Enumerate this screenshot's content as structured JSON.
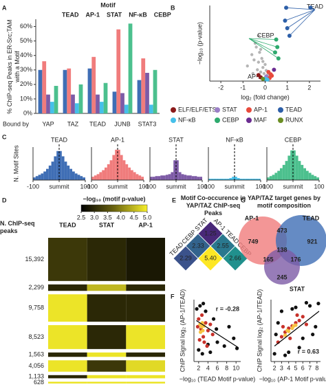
{
  "chart_data": [
    {
      "type": "bar",
      "panel": "A",
      "title": "Motif",
      "ylabel": "% ChIP-seq Peaks in ER-Src;TAM with a Motif",
      "xlabel": "Bound by",
      "categories": [
        "YAP",
        "TAZ",
        "TEAD",
        "JUNB",
        "STAT3"
      ],
      "series": [
        {
          "name": "TEAD",
          "color": "#3f6eb5",
          "values": [
            30,
            30,
            31,
            15,
            23
          ]
        },
        {
          "name": "AP-1",
          "color": "#f07c7c",
          "values": [
            36,
            31,
            39,
            58,
            38
          ]
        },
        {
          "name": "STAT",
          "color": "#7d5ba6",
          "values": [
            13,
            13,
            13,
            14,
            28
          ]
        },
        {
          "name": "NF-κB",
          "color": "#45c0ea",
          "values": [
            8,
            7,
            8,
            6,
            6
          ]
        },
        {
          "name": "CEBP",
          "color": "#4cc08e",
          "values": [
            19,
            20,
            21,
            62,
            30
          ]
        }
      ],
      "ylim": [
        0,
        65
      ],
      "yticks": [
        {
          "value": 0,
          "label": "0%"
        },
        {
          "value": 10,
          "label": "10%"
        },
        {
          "value": 20,
          "label": "20%"
        },
        {
          "value": 30,
          "label": "30%"
        },
        {
          "value": 40,
          "label": "40%"
        },
        {
          "value": 50,
          "label": "50%"
        },
        {
          "value": 60,
          "label": "60%"
        }
      ]
    },
    {
      "type": "scatter",
      "panel": "B",
      "xlabel": "log₂ (fold change)",
      "ylabel": "−log₁₀ (p-value)",
      "xlim": [
        -2.5,
        2.5
      ],
      "xticks": [
        -2,
        -1,
        0,
        1,
        2
      ],
      "ylim": [
        0,
        100
      ],
      "background": {
        "color": "#b5b5b5",
        "x": [
          -0.8,
          -0.6,
          -0.5,
          -0.4,
          -0.35,
          -0.3,
          -0.25,
          -0.2,
          -0.15,
          -0.1,
          -0.05,
          0.0,
          0.05,
          0.1,
          -0.45,
          -0.55,
          -0.3,
          -0.2,
          -0.1,
          0.2
        ],
        "y": [
          20,
          35,
          28,
          45,
          15,
          25,
          38,
          12,
          30,
          18,
          10,
          22,
          14,
          8,
          50,
          10,
          60,
          42,
          26,
          6
        ]
      },
      "series": [
        {
          "name": "ELF/ELF/ETS",
          "color": "#8b1a1a",
          "x": [
            -0.3,
            -0.2
          ],
          "y": [
            8,
            5
          ]
        },
        {
          "name": "STAT",
          "color": "#9b7fc7",
          "x": [
            0.05,
            0.1
          ],
          "y": [
            6,
            4
          ]
        },
        {
          "name": "AP-1",
          "color": "#e84a3c",
          "x": [
            0.15,
            0.25,
            0.3,
            0.2
          ],
          "y": [
            12,
            9,
            7,
            4
          ]
        },
        {
          "name": "TEAD",
          "color": "#2d5fa8",
          "x": [
            0.95,
            2.05,
            0.9,
            1.0,
            1.1
          ],
          "y": [
            97,
            97,
            80,
            70,
            60
          ]
        },
        {
          "name": "NF-κB",
          "color": "#45c0ea",
          "x": [
            0.0,
            0.1
          ],
          "y": [
            3,
            2
          ]
        },
        {
          "name": "CEBP",
          "color": "#2eaa6e",
          "x": [
            0.5,
            0.55,
            0.45,
            0.6
          ],
          "y": [
            55,
            45,
            38,
            30
          ]
        },
        {
          "name": "MAF",
          "color": "#6b2c91",
          "x": [
            0.4
          ],
          "y": [
            15
          ]
        },
        {
          "name": "RUNX",
          "color": "#6b8e23",
          "x": [
            -0.1
          ],
          "y": [
            3
          ]
        }
      ],
      "annotations": [
        {
          "text": "TEAD",
          "color": "#2d5fa8"
        },
        {
          "text": "CEBP",
          "color": "#2eaa6e"
        },
        {
          "text": "AP-1",
          "color": "#e84a3c"
        }
      ]
    },
    {
      "type": "histogram",
      "panel": "C",
      "ylabel": "N. Motif Sites",
      "title": "TEAD",
      "color": "#3f6eb5",
      "bins": [
        -100,
        -90,
        -80,
        -70,
        -60,
        -50,
        -40,
        -30,
        -20,
        -10,
        0,
        10,
        20,
        30,
        40,
        50,
        60,
        70,
        80,
        90,
        100
      ],
      "counts": [
        4,
        6,
        8,
        10,
        13,
        17,
        22,
        28,
        36,
        44,
        44,
        36,
        28,
        22,
        17,
        13,
        10,
        8,
        6,
        4
      ],
      "xlim": [
        -100,
        100
      ],
      "ylim": [
        0,
        50
      ],
      "xticks": [
        -100,
        {
          "value": 0,
          "label": "summit"
        },
        100
      ]
    },
    {
      "type": "histogram",
      "title": "AP-1",
      "color": "#f07c7c",
      "bins": [
        -100,
        -90,
        -80,
        -70,
        -60,
        -50,
        -40,
        -30,
        -20,
        -10,
        0,
        10,
        20,
        30,
        40,
        50,
        60,
        70,
        80,
        90,
        100
      ],
      "counts": [
        5,
        7,
        9,
        12,
        15,
        19,
        24,
        30,
        38,
        46,
        46,
        38,
        30,
        24,
        19,
        15,
        12,
        9,
        7,
        5
      ],
      "xlim": [
        -100,
        100
      ],
      "ylim": [
        0,
        50
      ],
      "xticks": [
        -100,
        {
          "value": 0,
          "label": "summit"
        },
        100
      ]
    },
    {
      "type": "histogram",
      "title": "STAT",
      "color": "#7d5ba6",
      "bins": [
        -100,
        -90,
        -80,
        -70,
        -60,
        -50,
        -40,
        -30,
        -20,
        -10,
        0,
        10,
        20,
        30,
        40,
        50,
        60,
        70,
        80,
        90,
        100
      ],
      "counts": [
        5,
        5,
        6,
        6,
        7,
        7,
        8,
        9,
        12,
        30,
        30,
        12,
        9,
        8,
        7,
        7,
        6,
        6,
        5,
        5
      ],
      "xlim": [
        -100,
        100
      ],
      "ylim": [
        0,
        50
      ],
      "xticks": [
        -100,
        {
          "value": 0,
          "label": "summit"
        },
        100
      ]
    },
    {
      "type": "histogram",
      "title": "NF-κB",
      "color": "#45c0ea",
      "bins": [
        -100,
        -90,
        -80,
        -70,
        -60,
        -50,
        -40,
        -30,
        -20,
        -10,
        0,
        10,
        20,
        30,
        40,
        50,
        60,
        70,
        80,
        90,
        100
      ],
      "counts": [
        2,
        2,
        2,
        2,
        2,
        2,
        2,
        2,
        3,
        5,
        5,
        3,
        2,
        2,
        2,
        2,
        2,
        2,
        2,
        2
      ],
      "xlim": [
        -100,
        100
      ],
      "ylim": [
        0,
        50
      ],
      "xticks": [
        -100,
        {
          "value": 0,
          "label": "summit"
        },
        100
      ]
    },
    {
      "type": "histogram",
      "title": "CEBP",
      "color": "#4cc08e",
      "bins": [
        -100,
        -90,
        -80,
        -70,
        -60,
        -50,
        -40,
        -30,
        -20,
        -10,
        0,
        10,
        20,
        30,
        40,
        50,
        60,
        70,
        80,
        90,
        100
      ],
      "counts": [
        4,
        6,
        8,
        11,
        14,
        18,
        23,
        29,
        37,
        45,
        45,
        37,
        29,
        23,
        18,
        14,
        11,
        8,
        6,
        4
      ],
      "xlim": [
        -100,
        100
      ],
      "ylim": [
        0,
        50
      ],
      "xticks": [
        -100,
        {
          "value": 0,
          "label": "summit"
        },
        100
      ]
    },
    {
      "type": "heatmap",
      "panel": "D",
      "colorbar_label": "−log₁₀ (motif p-value)",
      "clim": [
        2.5,
        5.0
      ],
      "cticks": [
        2.5,
        {
          "value": 3,
          "label": "3.0"
        },
        3.5,
        {
          "value": 4,
          "label": "4.0"
        },
        4.5,
        {
          "value": 5,
          "label": "5.0"
        }
      ],
      "colormap": [
        "#000000",
        "#6b6410",
        "#f7ef2a"
      ],
      "row_header": "N. ChIP-seq peaks",
      "columns": [
        "TEAD",
        "STAT",
        "AP-1"
      ],
      "peaks": [
        {
          "value": 15392,
          "label": "15,392"
        },
        {
          "value": 2299,
          "label": "2,299"
        },
        {
          "value": 9758,
          "label": "9,758"
        },
        {
          "value": 8523,
          "label": "8,523"
        },
        {
          "value": 1563,
          "label": "1,563"
        },
        {
          "value": 4056,
          "label": "4,056"
        },
        {
          "value": 1133,
          "label": "1,133"
        },
        {
          "value": 628,
          "label": "628"
        }
      ],
      "values": [
        [
          3.2,
          3.0,
          2.8
        ],
        [
          3.0,
          4.5,
          3.0
        ],
        [
          4.9,
          3.0,
          3.0
        ],
        [
          4.9,
          3.0,
          4.9
        ],
        [
          3.0,
          4.9,
          3.0
        ],
        [
          4.9,
          3.2,
          4.8
        ],
        [
          3.0,
          4.9,
          4.9
        ],
        [
          4.9,
          4.9,
          4.9
        ]
      ]
    },
    {
      "type": "matrix",
      "panel": "E",
      "title": "Motif Co-occurence in YAP/TAZ ChIP-seq Peaks",
      "left_labels": [
        "STAT",
        "CEBP",
        "TEAD"
      ],
      "right_labels": [
        "AP-1",
        "TEAD",
        "CEBP"
      ],
      "cells": [
        [
          1.25
        ],
        [
          2.33,
          2.55
        ],
        [
          2.29,
          5.4,
          2.66
        ]
      ],
      "value_labels": [
        [
          "1.25"
        ],
        [
          "2.33",
          "2.55"
        ],
        [
          "2.29",
          "5.40",
          "2.66"
        ]
      ],
      "colors": [
        [
          "#482878"
        ],
        [
          "#33638d",
          "#2a788e"
        ],
        [
          "#3b528b",
          "#fde725",
          "#21908d"
        ]
      ]
    },
    {
      "type": "scatter",
      "panel": "F",
      "xlabel": "−log₁₀ (TEAD Motif p-value)",
      "ylabel": "ChIP Signal log₂ (AP-1/TEAD)",
      "xlim": [
        1,
        11
      ],
      "xticks": [
        2,
        4,
        6,
        8,
        10
      ],
      "ylim": [
        -4,
        4
      ],
      "series": [
        {
          "color": "#111111",
          "x": [
            1.6,
            2.0,
            2.3,
            3.5,
            4.5,
            5.2,
            6.0,
            7.5,
            8.5,
            9.5,
            2.8,
            4.0,
            3.0,
            5.8,
            10.2
          ],
          "y": [
            2.8,
            -2.5,
            3.2,
            2.5,
            -2.8,
            1.5,
            -1.5,
            -2.0,
            0.5,
            -1.0,
            -3.0,
            -1.8,
            3.5,
            0.2,
            -2.3
          ]
        },
        {
          "color": "#c8322b",
          "x": [
            2.0,
            2.5,
            3.0,
            3.5,
            2.2,
            4.0,
            2.7,
            3.2,
            4.5,
            1.8,
            5.0,
            3.8
          ],
          "y": [
            1.5,
            0.2,
            -0.8,
            1.0,
            -1.2,
            0.0,
            2.0,
            -1.5,
            0.8,
            0.5,
            -0.5,
            -2.0
          ]
        },
        {
          "color": "#f7c242",
          "x": [
            2.3,
            2.6,
            2.9,
            2.4,
            3.1,
            2.8
          ],
          "y": [
            0.8,
            0.5,
            0.0,
            -0.2,
            0.6,
            1.0
          ]
        }
      ],
      "trend": {
        "x": [
          1.5,
          10.5
        ],
        "y": [
          1.3,
          -2.2
        ]
      },
      "annotation": "r = -0.28"
    },
    {
      "type": "scatter",
      "xlabel": "−log₁₀ (AP-1 Motif p-value)",
      "ylabel": "ChIP Signal log₂ (AP-1/TEAD)",
      "xlim": [
        1.5,
        8.5
      ],
      "xticks": [
        2,
        3,
        4,
        5,
        6,
        7,
        8
      ],
      "ylim": [
        -4,
        4
      ],
      "series": [
        {
          "color": "#111111",
          "x": [
            2.0,
            2.5,
            3.0,
            4.0,
            5.0,
            6.0,
            7.0,
            7.8,
            8.2,
            3.5,
            6.5,
            2.2,
            4.5,
            5.5,
            7.4
          ],
          "y": [
            -3.0,
            1.0,
            2.5,
            -2.8,
            3.0,
            -1.0,
            3.2,
            0.5,
            3.5,
            -3.2,
            3.6,
            -0.5,
            2.8,
            -2.2,
            -0.5
          ]
        },
        {
          "color": "#c8322b",
          "x": [
            2.5,
            3.0,
            3.5,
            4.0,
            4.5,
            5.0,
            5.5,
            6.0,
            3.2,
            4.2,
            5.2,
            6.5
          ],
          "y": [
            -1.5,
            -0.8,
            -0.2,
            0.3,
            0.6,
            1.0,
            1.3,
            1.8,
            0.5,
            -1.0,
            2.0,
            0.8
          ]
        },
        {
          "color": "#f7c242",
          "x": [
            3.5,
            4.0,
            4.5,
            5.0,
            3.8,
            4.7
          ],
          "y": [
            -0.6,
            -0.1,
            0.3,
            0.7,
            0.0,
            0.6
          ]
        }
      ],
      "trend": {
        "x": [
          2,
          8.3
        ],
        "y": [
          -2.0,
          2.5
        ]
      },
      "annotation": "r = 0.63"
    },
    {
      "type": "venn",
      "panel": "G",
      "title": "YAP/TAZ target genes by motif composition",
      "sets": [
        {
          "name": "AP-1",
          "color": "#f07c7c"
        },
        {
          "name": "TEAD",
          "color": "#3f6eb5"
        },
        {
          "name": "STAT",
          "color": "#7d5ba6"
        }
      ],
      "values": [
        749,
        921,
        245,
        473,
        165,
        176,
        138
      ]
    }
  ]
}
